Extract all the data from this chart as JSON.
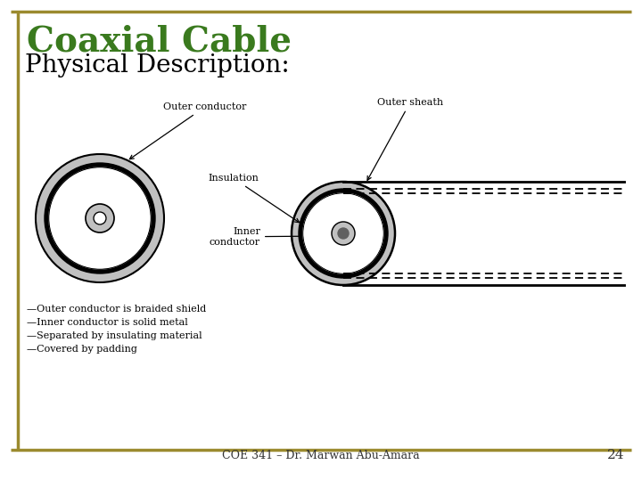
{
  "title": "Coaxial Cable",
  "subtitle": "Physical Description:",
  "title_color": "#3A7A1E",
  "subtitle_color": "#000000",
  "footer_text": "COE 341 – Dr. Marwan Abu-Amara",
  "page_number": "24",
  "background_color": "#ffffff",
  "border_color": "#9B8A2E",
  "bullet_items": [
    "—Outer conductor is braided shield",
    "—Inner conductor is solid metal",
    "—Separated by insulating material",
    "—Covered by padding"
  ],
  "labels": {
    "outer_conductor": "Outer conductor",
    "outer_sheath": "Outer sheath",
    "insulation": "Insulation",
    "inner_conductor": "Inner\nconductor"
  },
  "gray_light": "#C0C0C0",
  "gray_dark": "#606060"
}
